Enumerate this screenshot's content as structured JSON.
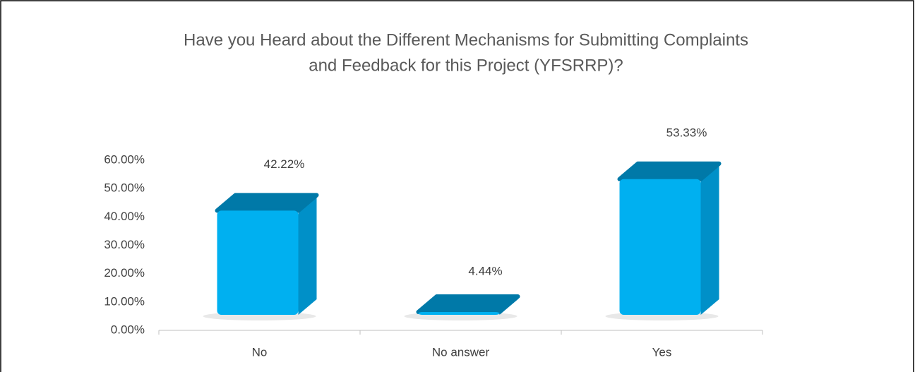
{
  "chart_data": {
    "type": "bar",
    "title": [
      "Have you Heard about the Different Mechanisms for Submitting Complaints",
      "and Feedback for this Project (YFSRRP)?"
    ],
    "categories": [
      "No",
      "No answer",
      "Yes"
    ],
    "values": [
      42.22,
      4.44,
      53.33
    ],
    "value_labels": [
      "42.22%",
      "4.44%",
      "53.33%"
    ],
    "color": "#00b0f0",
    "ylim": [
      0,
      60
    ],
    "yticks": [
      {
        "value": 0,
        "label": "0.00%"
      },
      {
        "value": 10,
        "label": "10.00%"
      },
      {
        "value": 20,
        "label": "20.00%"
      },
      {
        "value": 30,
        "label": "30.00%"
      },
      {
        "value": 40,
        "label": "40.00%"
      },
      {
        "value": 50,
        "label": "50.00%"
      },
      {
        "value": 60,
        "label": "60.00%"
      }
    ],
    "grid": false
  }
}
